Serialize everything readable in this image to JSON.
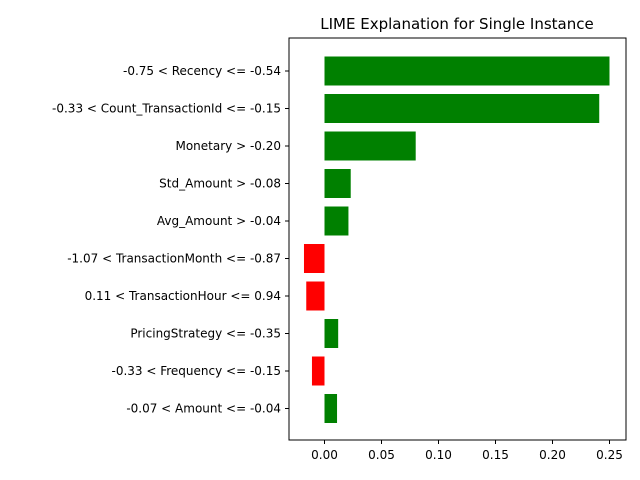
{
  "chart_data": {
    "type": "bar",
    "orientation": "horizontal",
    "title": "LIME Explanation for Single Instance",
    "xlabel": "",
    "ylabel": "",
    "xlim": [
      -0.032,
      0.263
    ],
    "xticks": [
      "0.00",
      "0.05",
      "0.10",
      "0.15",
      "0.20",
      "0.25"
    ],
    "xtick_values": [
      0.0,
      0.05,
      0.1,
      0.15,
      0.2,
      0.25
    ],
    "grid": false,
    "positive_color": "#008000",
    "negative_color": "#ff0000",
    "bars": [
      {
        "label": "-0.75 < Recency <= -0.54",
        "value": 0.25
      },
      {
        "label": "-0.33 < Count_TransactionId <= -0.15",
        "value": 0.241
      },
      {
        "label": "Monetary > -0.20",
        "value": 0.08
      },
      {
        "label": "Std_Amount > -0.08",
        "value": 0.023
      },
      {
        "label": "Avg_Amount > -0.04",
        "value": 0.021
      },
      {
        "label": "-1.07 < TransactionMonth <= -0.87",
        "value": -0.018
      },
      {
        "label": "0.11 < TransactionHour <= 0.94",
        "value": -0.016
      },
      {
        "label": "PricingStrategy <= -0.35",
        "value": 0.012
      },
      {
        "label": "-0.33 < Frequency <= -0.15",
        "value": -0.011
      },
      {
        "label": "-0.07 < Amount <= -0.04",
        "value": 0.011
      }
    ]
  }
}
